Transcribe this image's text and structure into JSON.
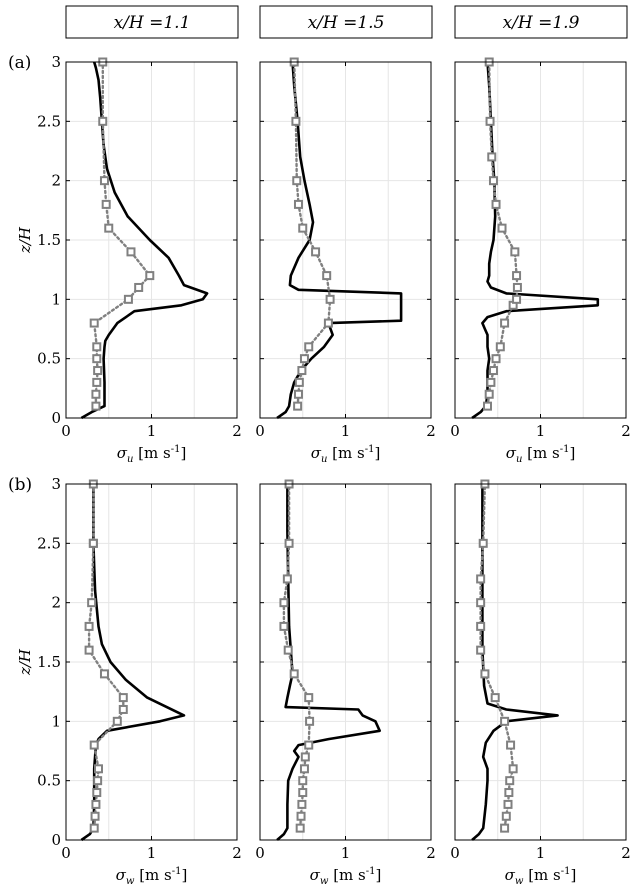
{
  "column_headers": [
    "x/H =1.1",
    "x/H =1.5",
    "x/H =1.9"
  ],
  "row_labels": [
    "(a)",
    "(b)"
  ],
  "colors": {
    "les": "#000000",
    "exp": "#808080",
    "grid": "#e6e6e6",
    "axis": "#000000"
  },
  "chart_data": [
    {
      "type": "line",
      "panel": "a1",
      "row_label": "(a)",
      "title": "x/H =1.1",
      "xlabel": "σu [m s-1]",
      "ylabel": "z/H",
      "xlim": [
        0,
        2
      ],
      "ylim": [
        0,
        3
      ],
      "xticks": [
        "0",
        "1",
        "2"
      ],
      "yticks": [
        "0",
        "0.5",
        "1",
        "1.5",
        "2",
        "2.5",
        "3"
      ],
      "grid": true,
      "series": [
        {
          "style": "solid-black",
          "x": [
            0.18,
            0.3,
            0.45,
            0.45,
            0.44,
            0.45,
            0.46,
            0.5,
            0.6,
            0.8,
            1.35,
            1.6,
            1.65,
            1.38,
            1.32,
            1.2,
            0.98,
            0.72,
            0.57,
            0.48,
            0.44,
            0.42,
            0.4,
            0.38,
            0.35,
            0.33
          ],
          "y": [
            0.0,
            0.05,
            0.1,
            0.3,
            0.5,
            0.6,
            0.65,
            0.7,
            0.8,
            0.9,
            0.95,
            1.0,
            1.05,
            1.12,
            1.2,
            1.35,
            1.5,
            1.7,
            1.9,
            2.1,
            2.3,
            2.5,
            2.7,
            2.85,
            2.95,
            3.0
          ]
        },
        {
          "style": "dotted-gray-squares",
          "x": [
            0.35,
            0.35,
            0.36,
            0.37,
            0.36,
            0.36,
            0.33,
            0.73,
            0.85,
            0.98,
            0.76,
            0.5,
            0.47,
            0.45,
            0.43,
            0.43
          ],
          "y": [
            0.1,
            0.2,
            0.3,
            0.4,
            0.5,
            0.6,
            0.8,
            1.0,
            1.1,
            1.2,
            1.4,
            1.6,
            1.8,
            2.0,
            2.5,
            3.0
          ]
        }
      ]
    },
    {
      "type": "line",
      "panel": "a2",
      "title": "x/H =1.5",
      "xlabel": "σu [m s-1]",
      "ylabel": "",
      "xlim": [
        0,
        2
      ],
      "ylim": [
        0,
        3
      ],
      "xticks": [
        "0",
        "1",
        "2"
      ],
      "yticks": [],
      "grid": true,
      "series": [
        {
          "style": "solid-black",
          "x": [
            0.2,
            0.3,
            0.34,
            0.36,
            0.4,
            0.48,
            0.6,
            0.75,
            0.85,
            0.8,
            1.65,
            1.65,
            0.45,
            0.35,
            0.36,
            0.45,
            0.58,
            0.62,
            0.58,
            0.52,
            0.47,
            0.44,
            0.4,
            0.38
          ],
          "y": [
            0.0,
            0.05,
            0.1,
            0.2,
            0.3,
            0.4,
            0.5,
            0.6,
            0.7,
            0.8,
            0.82,
            1.05,
            1.08,
            1.12,
            1.2,
            1.35,
            1.5,
            1.65,
            1.8,
            2.0,
            2.2,
            2.5,
            2.8,
            3.0
          ]
        },
        {
          "style": "dotted-gray-squares",
          "x": [
            0.44,
            0.45,
            0.46,
            0.49,
            0.52,
            0.57,
            0.8,
            0.82,
            0.78,
            0.65,
            0.5,
            0.45,
            0.43,
            0.42,
            0.4
          ],
          "y": [
            0.1,
            0.2,
            0.3,
            0.4,
            0.5,
            0.6,
            0.8,
            1.0,
            1.2,
            1.4,
            1.6,
            1.8,
            2.0,
            2.5,
            3.0
          ]
        }
      ]
    },
    {
      "type": "line",
      "panel": "a3",
      "title": "x/H =1.9",
      "xlabel": "σu [m s-1]",
      "ylabel": "",
      "xlim": [
        0,
        2
      ],
      "ylim": [
        0,
        3
      ],
      "xticks": [
        "0",
        "1",
        "2"
      ],
      "yticks": [],
      "grid": true,
      "series": [
        {
          "style": "solid-black",
          "x": [
            0.2,
            0.3,
            0.36,
            0.38,
            0.38,
            0.4,
            0.38,
            0.38,
            0.35,
            0.32,
            0.38,
            0.6,
            1.67,
            1.67,
            0.6,
            0.42,
            0.38,
            0.4,
            0.4,
            0.42,
            0.45,
            0.47,
            0.46,
            0.44,
            0.42,
            0.4,
            0.38
          ],
          "y": [
            0.0,
            0.05,
            0.1,
            0.2,
            0.4,
            0.5,
            0.6,
            0.7,
            0.75,
            0.8,
            0.85,
            0.9,
            0.95,
            1.0,
            1.05,
            1.1,
            1.15,
            1.2,
            1.3,
            1.4,
            1.5,
            1.7,
            2.0,
            2.2,
            2.5,
            2.8,
            3.0
          ]
        },
        {
          "style": "dotted-gray-squares",
          "x": [
            0.38,
            0.4,
            0.42,
            0.45,
            0.48,
            0.53,
            0.58,
            0.68,
            0.72,
            0.73,
            0.72,
            0.7,
            0.55,
            0.48,
            0.45,
            0.43,
            0.41,
            0.4
          ],
          "y": [
            0.1,
            0.2,
            0.3,
            0.4,
            0.5,
            0.6,
            0.8,
            0.95,
            1.0,
            1.1,
            1.2,
            1.4,
            1.6,
            1.8,
            2.0,
            2.2,
            2.5,
            3.0
          ]
        }
      ]
    },
    {
      "type": "line",
      "panel": "b1",
      "row_label": "(b)",
      "title": "",
      "xlabel": "σw [m s-1]",
      "ylabel": "z/H",
      "xlim": [
        0,
        2
      ],
      "ylim": [
        0,
        3
      ],
      "xticks": [
        "0",
        "1",
        "2"
      ],
      "yticks": [
        "0",
        "0.5",
        "1",
        "1.5",
        "2",
        "2.5",
        "3"
      ],
      "grid": true,
      "series": [
        {
          "style": "solid-black",
          "x": [
            0.18,
            0.28,
            0.32,
            0.33,
            0.33,
            0.35,
            0.38,
            0.48,
            1.1,
            1.38,
            0.95,
            0.7,
            0.52,
            0.42,
            0.38,
            0.36,
            0.34,
            0.33,
            0.32,
            0.32,
            0.32,
            0.32
          ],
          "y": [
            0.0,
            0.05,
            0.1,
            0.3,
            0.6,
            0.8,
            0.85,
            0.92,
            1.0,
            1.05,
            1.2,
            1.35,
            1.5,
            1.65,
            1.8,
            1.95,
            2.1,
            2.3,
            2.5,
            2.7,
            2.9,
            3.0
          ]
        },
        {
          "style": "dotted-gray-squares",
          "x": [
            0.33,
            0.34,
            0.35,
            0.36,
            0.37,
            0.38,
            0.33,
            0.6,
            0.67,
            0.67,
            0.45,
            0.27,
            0.27,
            0.3,
            0.32,
            0.32,
            0.32
          ],
          "y": [
            0.1,
            0.2,
            0.3,
            0.4,
            0.5,
            0.6,
            0.8,
            1.0,
            1.1,
            1.2,
            1.4,
            1.6,
            1.8,
            2.0,
            2.5,
            2.5,
            3.0
          ]
        }
      ]
    },
    {
      "type": "line",
      "panel": "b2",
      "title": "",
      "xlabel": "σw [m s-1]",
      "ylabel": "",
      "xlim": [
        0,
        2
      ],
      "ylim": [
        0,
        3
      ],
      "xticks": [
        "0",
        "1",
        "2"
      ],
      "yticks": [],
      "grid": true,
      "series": [
        {
          "style": "solid-black",
          "x": [
            0.2,
            0.28,
            0.32,
            0.32,
            0.33,
            0.38,
            0.45,
            0.4,
            0.45,
            0.8,
            1.4,
            1.35,
            1.2,
            1.15,
            0.3,
            0.32,
            0.35,
            0.38,
            0.36,
            0.34,
            0.33,
            0.32,
            0.32
          ],
          "y": [
            0.0,
            0.05,
            0.1,
            0.3,
            0.5,
            0.6,
            0.7,
            0.75,
            0.8,
            0.85,
            0.92,
            1.0,
            1.05,
            1.1,
            1.12,
            1.2,
            1.3,
            1.4,
            1.6,
            1.8,
            2.2,
            2.6,
            3.0
          ]
        },
        {
          "style": "dotted-gray-squares",
          "x": [
            0.47,
            0.48,
            0.49,
            0.5,
            0.5,
            0.52,
            0.53,
            0.57,
            0.58,
            0.57,
            0.4,
            0.33,
            0.28,
            0.28,
            0.32,
            0.34,
            0.34
          ],
          "y": [
            0.1,
            0.2,
            0.3,
            0.4,
            0.5,
            0.6,
            0.7,
            0.8,
            1.0,
            1.2,
            1.4,
            1.6,
            1.8,
            2.0,
            2.2,
            2.5,
            3.0
          ]
        }
      ]
    },
    {
      "type": "line",
      "panel": "b3",
      "title": "",
      "xlabel": "σw [m s-1]",
      "ylabel": "",
      "xlim": [
        0,
        2
      ],
      "ylim": [
        0,
        3
      ],
      "xticks": [
        "0",
        "1",
        "2"
      ],
      "yticks": [],
      "grid": true,
      "series": [
        {
          "style": "solid-black",
          "x": [
            0.2,
            0.28,
            0.33,
            0.36,
            0.38,
            0.38,
            0.33,
            0.36,
            0.45,
            0.6,
            1.2,
            0.6,
            0.38,
            0.34,
            0.32,
            0.32,
            0.32
          ],
          "y": [
            0.0,
            0.05,
            0.1,
            0.3,
            0.5,
            0.6,
            0.7,
            0.82,
            0.92,
            1.0,
            1.05,
            1.1,
            1.15,
            1.3,
            1.6,
            2.0,
            3.0
          ]
        },
        {
          "style": "dotted-gray-squares",
          "x": [
            0.58,
            0.6,
            0.62,
            0.63,
            0.64,
            0.68,
            0.65,
            0.58,
            0.47,
            0.35,
            0.3,
            0.3,
            0.3,
            0.3,
            0.33,
            0.35
          ],
          "y": [
            0.1,
            0.2,
            0.3,
            0.4,
            0.5,
            0.6,
            0.8,
            1.0,
            1.2,
            1.4,
            1.6,
            1.8,
            2.0,
            2.2,
            2.5,
            3.0
          ]
        }
      ]
    }
  ]
}
